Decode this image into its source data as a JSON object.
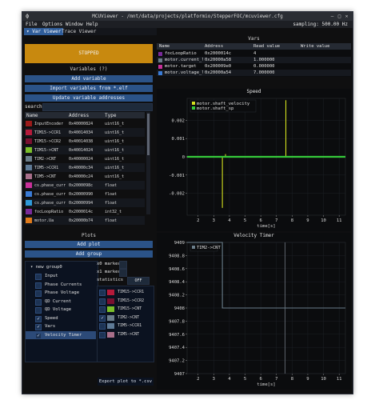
{
  "window": {
    "title": "MCUViewer - /mnt/data/projects/platformio/StepperFOC/mcuviewer.cfg"
  },
  "menu": [
    "File",
    "Options",
    "Window",
    "Help"
  ],
  "sampling": "sampling: 500.00 Hz",
  "tabs": [
    "Var Viewer",
    "Trace Viewer"
  ],
  "left": {
    "status": "STOPPED",
    "variables_header": "Variables (?)",
    "add_variable": "Add variable",
    "import_elf": "Import variables from *.elf",
    "update_addresses": "Update variable addresses",
    "search_label": "search",
    "table_headers": [
      "Name",
      "Address",
      "Type"
    ],
    "variables": [
      {
        "name": "InputEncoder",
        "address": "0x40000824",
        "type": "uint16_t",
        "color": "#9a1a1a"
      },
      {
        "name": "TIM15->CCR1",
        "address": "0x40014034",
        "type": "uint16_t",
        "color": "#b51a3a"
      },
      {
        "name": "TIM15->CCR2",
        "address": "0x40014038",
        "type": "uint16_t",
        "color": "#7a1030"
      },
      {
        "name": "TIM15->CNT",
        "address": "0x40014024",
        "type": "uint16_t",
        "color": "#7bbf2a"
      },
      {
        "name": "TIM2->CNT",
        "address": "0x40000024",
        "type": "uint16_t",
        "color": "#6a7d8a"
      },
      {
        "name": "TIM5->CCR1",
        "address": "0x40000c34",
        "type": "uint16_t",
        "color": "#5e7a96"
      },
      {
        "name": "TIM5->CNT",
        "address": "0x40000c24",
        "type": "uint16_t",
        "color": "#a86f8a"
      },
      {
        "name": "cs.phase_curr",
        "address": "0x2000098c",
        "type": "float",
        "color": "#c8309a"
      },
      {
        "name": "cs.phase_curr",
        "address": "0x20000990",
        "type": "float",
        "color": "#3a7bd5"
      },
      {
        "name": "cs.phase_curr",
        "address": "0x20000994",
        "type": "float",
        "color": "#2f9ad9"
      },
      {
        "name": "focLoopRatio",
        "address": "0x2000014c",
        "type": "int32_t",
        "color": "#7a2a9a"
      },
      {
        "name": "motor.Ua",
        "address": "0x20000b74",
        "type": "float",
        "color": "#e07a1a"
      }
    ],
    "plots_header": "Plots",
    "add_plot": "Add plot",
    "add_group": "Add group",
    "group_name": "new group0",
    "plots": [
      {
        "label": "Input",
        "checked": false
      },
      {
        "label": "Phase Currents",
        "checked": false
      },
      {
        "label": "Phase Voltage",
        "checked": false
      },
      {
        "label": "QD Current",
        "checked": false
      },
      {
        "label": "QD Voltage",
        "checked": false
      },
      {
        "label": "Speed",
        "checked": true
      },
      {
        "label": "Vars",
        "checked": true
      },
      {
        "label": "Velocity Timer",
        "checked": true
      }
    ],
    "x0_marker": "x0 marker",
    "x1_marker": "x1 marker",
    "statistics_label": "statistics",
    "statistics_value": "OFF",
    "plot_series": [
      {
        "label": "TIM15->CCR1",
        "checked": false,
        "color": "#b51a3a"
      },
      {
        "label": "TIM15->CCR2",
        "checked": false,
        "color": "#7a1030"
      },
      {
        "label": "TIM15->CNT",
        "checked": false,
        "color": "#7bbf2a"
      },
      {
        "label": "TIM2->CNT",
        "checked": true,
        "color": "#6a7d8a"
      },
      {
        "label": "TIM5->CCR1",
        "checked": false,
        "color": "#5e7a96"
      },
      {
        "label": "TIM5->CNT",
        "checked": false,
        "color": "#a86f8a"
      }
    ],
    "export_button": "Export plot to *.csv"
  },
  "right": {
    "vars_title": "Vars",
    "vars_headers": [
      "Name",
      "Address",
      "Read value",
      "Write value"
    ],
    "vars_rows": [
      {
        "name": "focLoopRatio",
        "address": "0x2000014c",
        "read": "4",
        "write": "",
        "color": "#7a2a9a"
      },
      {
        "name": "motor.current_lir",
        "address": "0x20000a58",
        "read": "1.000000",
        "write": "",
        "color": "#6a7d8a"
      },
      {
        "name": "motor.target",
        "address": "0x200009e0",
        "read": "0.000000",
        "write": "",
        "color": "#c8309a"
      },
      {
        "name": "motor.voltage_lir",
        "address": "0x20000a54",
        "read": "7.000000",
        "write": "",
        "color": "#3a7bd5"
      }
    ]
  },
  "chart_data": [
    {
      "type": "line",
      "title": "Speed",
      "xlabel": "time[s]",
      "ylabel": "",
      "xlim": [
        1.3,
        11.4
      ],
      "ylim": [
        -0.0032,
        0.0032
      ],
      "xticks": [
        2,
        3,
        4,
        5,
        6,
        7,
        8,
        9,
        10,
        11
      ],
      "yticks": [
        0.002,
        0.001,
        0,
        -0.001,
        -0.002
      ],
      "ytick_labels": [
        "0.002",
        "0.001",
        "0",
        "-0.001",
        "-0.002"
      ],
      "series": [
        {
          "name": "motor.shaft_velocity",
          "color": "#d4e01e",
          "x": [
            1.3,
            3.55,
            3.55,
            3.55,
            3.75,
            3.75,
            3.75,
            7.6,
            7.6,
            7.6,
            11.4
          ],
          "y": [
            0,
            0,
            -0.0028,
            0,
            0,
            0.00015,
            0,
            0,
            0.0031,
            0,
            0
          ]
        },
        {
          "name": "motor.shaft_sp",
          "color": "#35c93a",
          "x": [
            1.3,
            11.4
          ],
          "y": [
            0,
            0
          ]
        }
      ]
    },
    {
      "type": "line",
      "title": "Velocity Timer",
      "xlabel": "time[s]",
      "ylabel": "",
      "xlim": [
        1.3,
        11.4
      ],
      "ylim": [
        9407,
        9409
      ],
      "xticks": [
        2,
        3,
        4,
        5,
        6,
        7,
        8,
        9,
        10,
        11
      ],
      "yticks": [
        9409,
        9408.8,
        9408.6,
        9408.4,
        9408.2,
        9408,
        9407.8,
        9407.6,
        9407.4,
        9407.2,
        9407
      ],
      "ytick_labels": [
        "9409",
        "9408.8",
        "9408.6",
        "9408.4",
        "9408.2",
        "9408",
        "9407.8",
        "9407.6",
        "9407.4",
        "9407.2",
        "9407"
      ],
      "series": [
        {
          "name": "TIM2->CNT",
          "color": "#6a7d8a",
          "x": [
            1.3,
            3.55,
            3.55,
            11.4
          ],
          "y": [
            9409,
            9409,
            9408,
            9408
          ]
        }
      ],
      "cursor_x": 7.55
    }
  ]
}
